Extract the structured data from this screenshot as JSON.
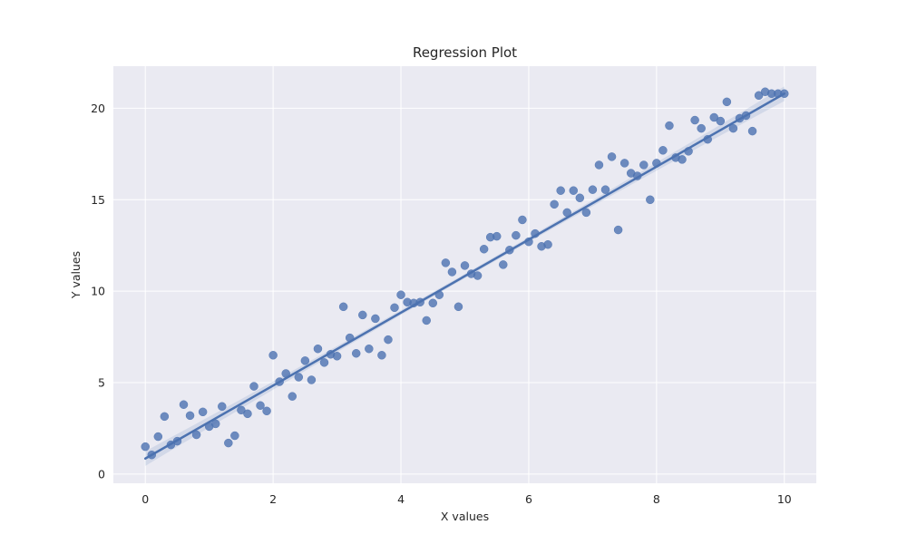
{
  "chart_data": {
    "type": "scatter",
    "title": "Regression Plot",
    "xlabel": "X values",
    "ylabel": "Y values",
    "xlim": [
      -0.5,
      10.5
    ],
    "ylim": [
      -0.5,
      22.3
    ],
    "xticks": [
      0,
      2,
      4,
      6,
      8,
      10
    ],
    "yticks": [
      0,
      5,
      10,
      15,
      20
    ],
    "grid": true,
    "colors": {
      "background": "#eaeaf2",
      "series": "#4c72b0"
    },
    "regression": {
      "x_start": 0,
      "x_end": 10,
      "y_start": 0.85,
      "y_end": 20.8
    },
    "series": [
      {
        "x": [
          0,
          0.1,
          0.2,
          0.3,
          0.4,
          0.5,
          0.6,
          0.7,
          0.8,
          0.9,
          1.0,
          1.1,
          1.2,
          1.3,
          1.4,
          1.5,
          1.6,
          1.7,
          1.8,
          1.9,
          2.0,
          2.1,
          2.2,
          2.3,
          2.4,
          2.5,
          2.6,
          2.7,
          2.8,
          2.9,
          3.0,
          3.1,
          3.2,
          3.3,
          3.4,
          3.5,
          3.6,
          3.7,
          3.8,
          3.9,
          4.0,
          4.1,
          4.2,
          4.3,
          4.4,
          4.5,
          4.6,
          4.7,
          4.8,
          4.9,
          5.0,
          5.1,
          5.2,
          5.3,
          5.4,
          5.5,
          5.6,
          5.7,
          5.8,
          5.9,
          6.0,
          6.1,
          6.2,
          6.3,
          6.4,
          6.5,
          6.6,
          6.7,
          6.8,
          6.9,
          7.0,
          7.1,
          7.2,
          7.3,
          7.4,
          7.5,
          7.6,
          7.7,
          7.8,
          7.9,
          8.0,
          8.1,
          8.2,
          8.3,
          8.4,
          8.5,
          8.6,
          8.7,
          8.8,
          8.9,
          9.0,
          9.1,
          9.2,
          9.3,
          9.4,
          9.5,
          9.6,
          9.7,
          9.8,
          9.9,
          10.0
        ],
        "y": [
          1.5,
          1.05,
          2.05,
          3.15,
          1.6,
          1.8,
          3.8,
          3.2,
          2.15,
          3.4,
          2.6,
          2.75,
          3.7,
          1.7,
          2.1,
          3.5,
          3.3,
          4.8,
          3.75,
          3.45,
          6.5,
          5.05,
          5.5,
          4.25,
          5.3,
          6.2,
          5.15,
          6.85,
          6.1,
          6.55,
          6.45,
          9.15,
          7.45,
          6.6,
          8.7,
          6.85,
          8.5,
          6.5,
          7.35,
          9.1,
          9.8,
          9.4,
          9.35,
          9.4,
          8.4,
          9.35,
          9.8,
          11.55,
          11.05,
          9.15,
          11.4,
          10.95,
          10.85,
          12.3,
          12.95,
          13.0,
          11.45,
          12.25,
          13.05,
          13.9,
          12.7,
          13.15,
          12.45,
          12.55,
          14.75,
          15.5,
          14.3,
          15.5,
          15.1,
          14.3,
          15.55,
          16.9,
          15.55,
          17.35,
          13.35,
          17.0,
          16.45,
          16.3,
          16.9,
          15.0,
          17.0,
          17.7,
          19.05,
          17.3,
          17.2,
          17.65,
          19.35,
          18.9,
          18.3,
          19.5,
          19.3,
          20.35,
          18.9,
          19.45,
          19.6,
          18.75,
          20.7,
          20.9,
          20.8,
          20.8,
          20.8
        ]
      }
    ]
  }
}
